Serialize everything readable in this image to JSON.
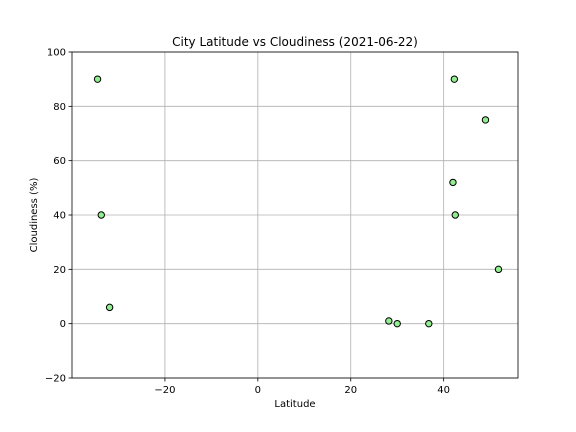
{
  "chart_data": {
    "type": "scatter",
    "title": "City Latitude vs Cloudiness (2021-06-22)",
    "xlabel": "Latitude",
    "ylabel": "Cloudiness (%)",
    "xlim": [
      -40,
      56
    ],
    "ylim": [
      -20,
      100
    ],
    "xticks": [
      -20,
      0,
      20,
      40
    ],
    "yticks": [
      -20,
      0,
      20,
      40,
      60,
      80,
      100
    ],
    "xtick_labels": [
      "−20",
      "0",
      "20",
      "40"
    ],
    "ytick_labels": [
      "−20",
      "0",
      "20",
      "40",
      "60",
      "80",
      "100"
    ],
    "grid": true,
    "marker_color": "#90ee90",
    "marker_edge_color": "#000000",
    "points": [
      {
        "x": -34.5,
        "y": 90
      },
      {
        "x": -33.7,
        "y": 40
      },
      {
        "x": -31.9,
        "y": 6
      },
      {
        "x": 28.2,
        "y": 1
      },
      {
        "x": 30.0,
        "y": 0
      },
      {
        "x": 36.8,
        "y": 0
      },
      {
        "x": 42.0,
        "y": 52
      },
      {
        "x": 42.3,
        "y": 90
      },
      {
        "x": 42.5,
        "y": 40
      },
      {
        "x": 49.0,
        "y": 75
      },
      {
        "x": 51.8,
        "y": 20
      }
    ]
  }
}
